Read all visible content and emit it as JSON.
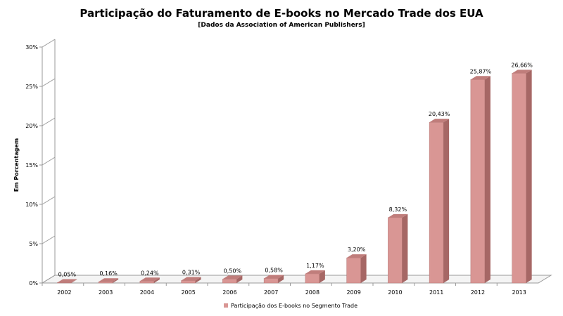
{
  "chart_data": {
    "type": "bar",
    "title": "Participação do Faturamento de E-books no Mercado Trade dos EUA",
    "subtitle": "[Dados da Association of American Publishers]",
    "xlabel": "",
    "ylabel": "Em Porcentagem",
    "categories": [
      "2002",
      "2003",
      "2004",
      "2005",
      "2006",
      "2007",
      "2008",
      "2009",
      "2010",
      "2011",
      "2012",
      "2013"
    ],
    "series": [
      {
        "name": "Participação dos E-books no Segmento Trade",
        "values": [
          0.05,
          0.16,
          0.24,
          0.31,
          0.5,
          0.58,
          1.17,
          3.2,
          8.32,
          20.43,
          25.87,
          26.66
        ],
        "labels": [
          "0,05%",
          "0,16%",
          "0,24%",
          "0,31%",
          "0,50%",
          "0,58%",
          "1,17%",
          "3,20%",
          "8,32%",
          "20,43%",
          "25,87%",
          "26,66%"
        ]
      }
    ],
    "ylim": [
      0,
      30
    ],
    "yticks": [
      0,
      5,
      10,
      15,
      20,
      25,
      30
    ],
    "ytick_labels": [
      "0%",
      "5%",
      "10%",
      "15%",
      "20%",
      "25%",
      "30%"
    ],
    "grid": false,
    "legend_position": "bottom",
    "colors": {
      "bar_front": "#d99694",
      "bar_side": "#a66765",
      "bar_top": "#c07d7b",
      "axis": "#9a9a9a"
    }
  }
}
